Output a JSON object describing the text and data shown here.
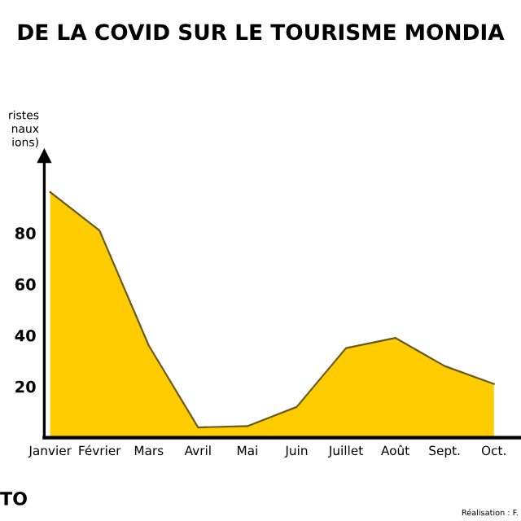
{
  "chart_data": {
    "type": "area",
    "title": "DE LA COVID SUR LE TOURISME MONDIA",
    "ylabel": "ristes\nnaux\nions)",
    "categories": [
      "Janvier",
      "Février",
      "Mars",
      "Avril",
      "Mai",
      "Juin",
      "Juillet",
      "Août",
      "Sept.",
      "Oct."
    ],
    "series": [
      {
        "color": "#ffcc00",
        "values": [
          96,
          81,
          36,
          4,
          4.5,
          12,
          35,
          39,
          28,
          21
        ]
      }
    ],
    "ylim": [
      0,
      110
    ],
    "yticks": [
      20,
      40,
      60,
      80
    ],
    "grid": false,
    "legend": false,
    "annotations": [
      "TO",
      "Réalisation : F."
    ]
  }
}
